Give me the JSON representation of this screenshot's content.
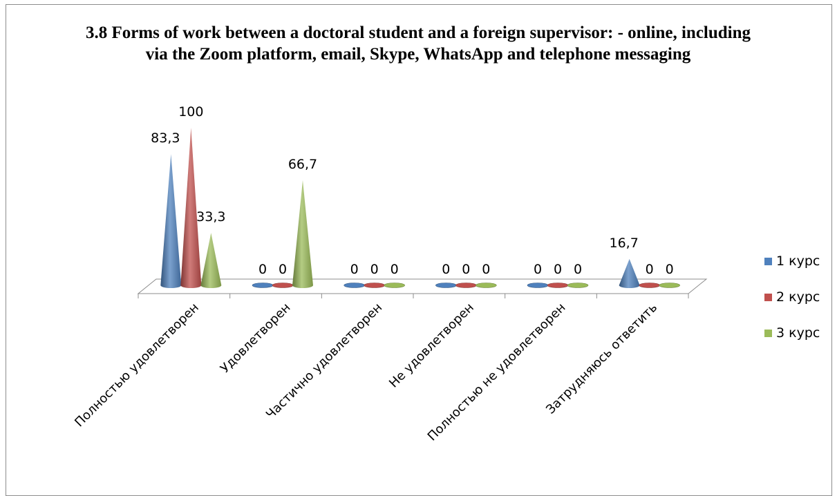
{
  "chart_data": {
    "type": "bar",
    "subtype": "3d-cone",
    "title": "3.8 Forms of work between a doctoral student and a foreign supervisor: - online, including via the Zoom platform, email, Skype, WhatsApp and telephone messaging",
    "categories": [
      "Полностью удовлетворен",
      "Удовлетворен",
      "Частично удовлетворен",
      "Не удовлетворен",
      "Полностью не удовлетворен",
      "Затрудняюсь ответить"
    ],
    "series": [
      {
        "name": "1 курс",
        "color": "#4f81bd",
        "values": [
          83.3,
          0,
          0,
          0,
          0,
          16.7
        ],
        "labels": [
          "83,3",
          "0",
          "0",
          "0",
          "0",
          "16,7"
        ]
      },
      {
        "name": "2 курс",
        "color": "#c0504d",
        "values": [
          100,
          0,
          0,
          0,
          0,
          0
        ],
        "labels": [
          "100",
          "0",
          "0",
          "0",
          "0",
          "0"
        ]
      },
      {
        "name": "3 курс",
        "color": "#9bbb59",
        "values": [
          33.3,
          66.7,
          0,
          0,
          0,
          0
        ],
        "labels": [
          "33,3",
          "66,7",
          "0",
          "0",
          "0",
          "0"
        ]
      }
    ],
    "ylim": [
      0,
      100
    ],
    "legend_position": "right",
    "grid": false
  }
}
